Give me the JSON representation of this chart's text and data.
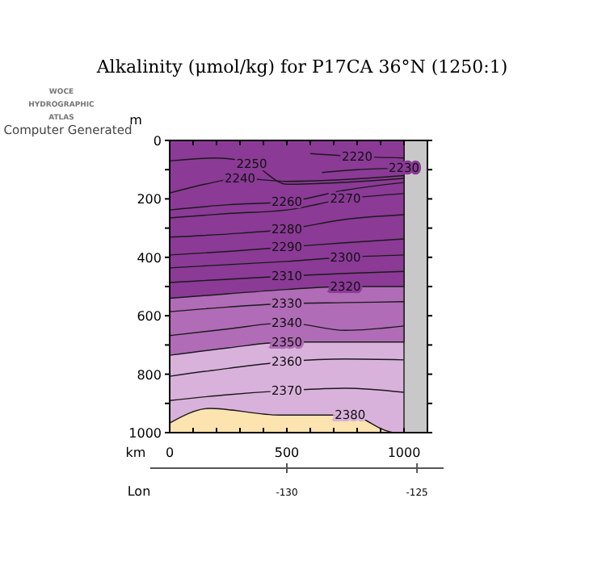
{
  "chart_data": {
    "type": "area",
    "title": "Alkalinity (μmol/kg) for P17CA 36°N (1250:1)",
    "xlabel": "km",
    "ylabel": "m",
    "x2label": "Lon",
    "color": "#fce3b0",
    "annotations": [
      "WOCE",
      "HYDROGRAPHIC",
      "ATLAS",
      "Computer Generated"
    ],
    "xlim": [
      0,
      1100
    ],
    "xticks": [
      0,
      {
        "value": 100,
        "label": null
      },
      {
        "value": 200,
        "label": null
      },
      {
        "value": 300,
        "label": null
      },
      {
        "value": 400,
        "label": null
      },
      500,
      {
        "value": 600,
        "label": null
      },
      {
        "value": 700,
        "label": null
      },
      {
        "value": 800,
        "label": null
      },
      {
        "value": 900,
        "label": null
      },
      1000,
      {
        "value": 1100,
        "label": null
      }
    ],
    "ylim": [
      1000,
      0
    ],
    "yticks": [
      0,
      {
        "value": 100,
        "label": null
      },
      200,
      {
        "value": 300,
        "label": null
      },
      400,
      {
        "value": 500,
        "label": null
      },
      600,
      {
        "value": 700,
        "label": null
      },
      800,
      {
        "value": 900,
        "label": null
      },
      1000
    ],
    "x2lim": [
      -134.5,
      -124.6
    ],
    "x2ticks": [
      -130,
      -125
    ],
    "bands": [
      {
        "axis": "x",
        "from": 1000,
        "to": 1100,
        "color": "#c8c8c8"
      }
    ],
    "series": [
      {
        "name": "2220",
        "type": "line",
        "color": "#1a1a1a",
        "x": [
          600,
          800,
          1000
        ],
        "values": [
          45,
          55,
          60
        ]
      },
      {
        "name": "2230",
        "type": "line",
        "color": "#1a1a1a",
        "x": [
          650,
          800,
          1000
        ],
        "values": [
          110,
          100,
          95
        ]
      },
      {
        "name": "2240",
        "type": "line",
        "color": "#1a1a1a",
        "x": [
          0,
          150,
          300,
          500,
          1000
        ],
        "values": [
          180,
          150,
          130,
          140,
          120
        ]
      },
      {
        "name": "2250",
        "type": "line",
        "color": "#1a1a1a",
        "x": [
          0,
          200,
          350,
          500,
          1000
        ],
        "values": [
          70,
          60,
          80,
          150,
          130
        ]
      },
      {
        "name": "2260",
        "type": "line",
        "color": "#1a1a1a",
        "x": [
          0,
          250,
          500,
          750,
          1000
        ],
        "values": [
          238,
          220,
          210,
          170,
          144
        ]
      },
      {
        "name": "2270",
        "type": "line",
        "color": "#1a1a1a",
        "x": [
          0,
          250,
          500,
          750,
          1000
        ],
        "values": [
          265,
          250,
          238,
          200,
          182
        ]
      },
      {
        "name": "2280",
        "type": "line",
        "color": "#1a1a1a",
        "x": [
          0,
          250,
          500,
          750,
          1000
        ],
        "values": [
          331,
          320,
          304,
          270,
          254
        ]
      },
      {
        "name": "2290",
        "type": "line",
        "color": "#1a1a1a",
        "x": [
          0,
          250,
          500,
          750,
          1000
        ],
        "values": [
          392,
          380,
          365,
          350,
          337
        ]
      },
      {
        "name": "2300",
        "type": "line",
        "color": "#1a1a1a",
        "x": [
          0,
          250,
          500,
          750,
          1000
        ],
        "values": [
          436,
          425,
          414,
          400,
          392
        ]
      },
      {
        "name": "2310",
        "type": "line",
        "color": "#1a1a1a",
        "x": [
          0,
          250,
          500,
          750,
          1000
        ],
        "values": [
          486,
          475,
          464,
          455,
          448
        ]
      },
      {
        "name": "2320",
        "type": "area",
        "color": "#8b3a96",
        "x": [
          0,
          250,
          500,
          750,
          1000
        ],
        "values": [
          540,
          525,
          510,
          500,
          500
        ]
      },
      {
        "name": "2330",
        "type": "line",
        "color": "#1a1a1a",
        "x": [
          0,
          250,
          500,
          750,
          1000
        ],
        "values": [
          586,
          570,
          558,
          555,
          552
        ]
      },
      {
        "name": "2340",
        "type": "line",
        "color": "#1a1a1a",
        "x": [
          0,
          250,
          500,
          750,
          1000
        ],
        "values": [
          668,
          645,
          624,
          650,
          635
        ]
      },
      {
        "name": "2350",
        "type": "area",
        "color": "#b06cb6",
        "x": [
          0,
          250,
          500,
          750,
          1000
        ],
        "values": [
          735,
          710,
          690,
          690,
          690
        ]
      },
      {
        "name": "2360",
        "type": "line",
        "color": "#1a1a1a",
        "x": [
          0,
          250,
          500,
          750,
          1000
        ],
        "values": [
          807,
          780,
          757,
          748,
          751
        ]
      },
      {
        "name": "2370",
        "type": "line",
        "color": "#1a1a1a",
        "x": [
          0,
          250,
          500,
          750,
          1000
        ],
        "values": [
          890,
          870,
          856,
          848,
          862
        ]
      },
      {
        "name": "2380",
        "type": "area",
        "color": "#d9b2dc",
        "x": [
          0,
          172,
          470,
          770,
          930,
          960,
          1000
        ],
        "values": [
          967,
          917,
          940,
          940,
          995,
          1000,
          1000
        ]
      }
    ]
  }
}
